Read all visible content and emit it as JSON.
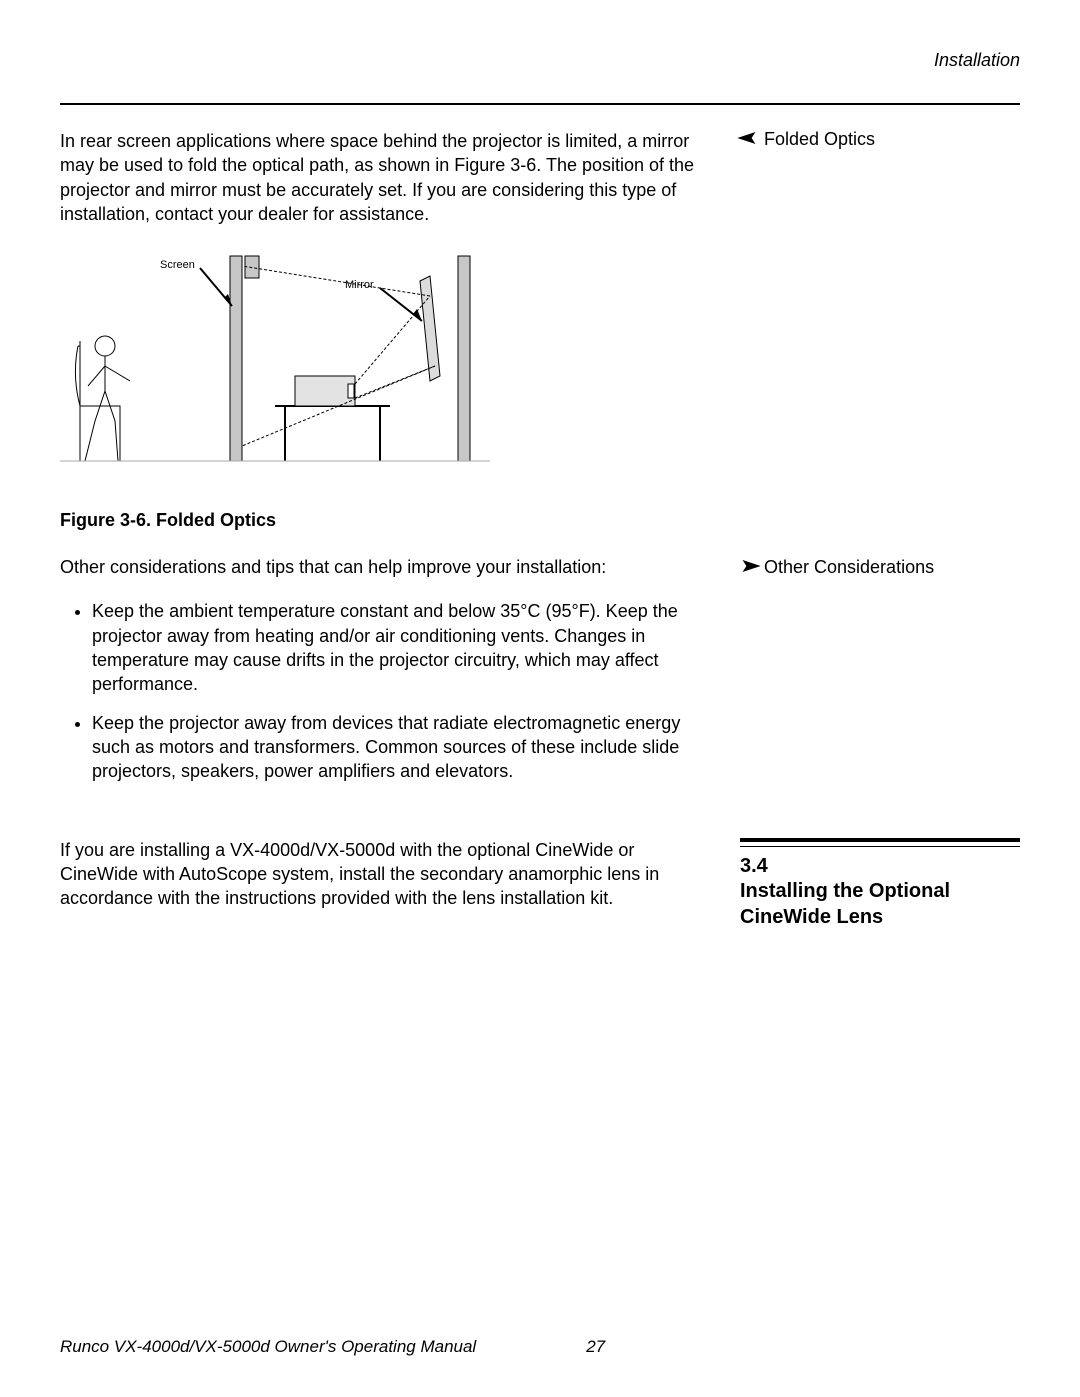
{
  "header": {
    "chapter": "Installation"
  },
  "folded_optics": {
    "side_label": "Folded Optics",
    "paragraph": "In rear screen applications where space behind the projector is limited, a mirror may be used to fold the optical path, as shown in Figure 3-6. The position of the projector and mirror must be accurately set. If you are considering this type of installation, contact your dealer for assistance.",
    "figure_caption": "Figure 3-6. Folded Optics",
    "diagram_labels": {
      "screen": "Screen",
      "mirror": "Mirror"
    }
  },
  "other_considerations": {
    "side_label": "Other  Considerations",
    "intro": "Other considerations and tips that can help improve your installation:",
    "bullets": [
      "Keep the ambient temperature constant and below 35°C (95°F). Keep the projector away from heating and/or air conditioning vents. Changes in temperature may cause drifts in the projector circuitry, which may affect performance.",
      "Keep the projector away from devices that radiate electromagnetic energy such as motors and transformers. Common sources of these include slide projectors, speakers, power amplifiers and elevators."
    ]
  },
  "section_3_4": {
    "number": "3.4",
    "title": "Installing the Optional CineWide Lens",
    "paragraph": "If you are installing a VX-4000d/VX-5000d with the optional CineWide or CineWide with AutoScope system, install the secondary anamorphic lens in accordance with the instructions provided with the lens installation kit."
  },
  "footer": {
    "manual_title": "Runco VX-4000d/VX-5000d Owner's Operating Manual",
    "page_number": "27"
  },
  "style": {
    "page_bg": "#ffffff",
    "text_color": "#000000",
    "diagram_gray": "#c7c7c7",
    "diagram_stroke": "#000000"
  }
}
